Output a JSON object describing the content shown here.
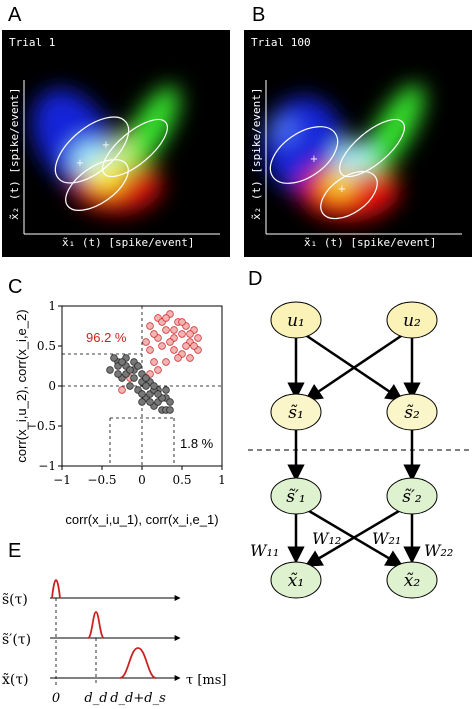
{
  "panels": {
    "A": {
      "letter": "A",
      "trial": "Trial 1",
      "xlabel": "x̃₁ (t)  [spike/event]",
      "ylabel": "x̃₂ (t)  [spike/event]"
    },
    "B": {
      "letter": "B",
      "trial": "Trial 100",
      "xlabel": "x̃₁ (t)  [spike/event]",
      "ylabel": "x̃₂ (t)  [spike/event]"
    },
    "C": {
      "letter": "C"
    },
    "D": {
      "letter": "D"
    },
    "E": {
      "letter": "E"
    }
  },
  "chart_data": [
    {
      "type": "scatter",
      "panel": "C",
      "xlabel": "corr(x_i,u_1), corr(x_i,e_1)",
      "ylabel": "corr(x_i,u_2), corr(x_i,e_2)",
      "xlim": [
        -1,
        1
      ],
      "ylim": [
        -1,
        1
      ],
      "xticks": [
        "−1",
        "−0.5",
        "0",
        "0.5",
        "1"
      ],
      "yticks": [
        "−1",
        "−0.5",
        "0",
        "0.5",
        "1"
      ],
      "annotations": [
        {
          "text": "96.2 %",
          "color": "#cc2222"
        },
        {
          "text": "1.8 %",
          "color": "#000000"
        }
      ],
      "series": [
        {
          "color": "#e06060",
          "points": [
            [
              0.1,
              0.75
            ],
            [
              0.2,
              0.85
            ],
            [
              0.3,
              0.7
            ],
            [
              0.35,
              0.9
            ],
            [
              0.4,
              0.6
            ],
            [
              0.45,
              0.8
            ],
            [
              0.5,
              0.65
            ],
            [
              0.55,
              0.75
            ],
            [
              0.6,
              0.55
            ],
            [
              0.65,
              0.7
            ],
            [
              0.7,
              0.45
            ],
            [
              0.25,
              0.5
            ],
            [
              0.15,
              0.3
            ],
            [
              0.3,
              0.3
            ],
            [
              0.5,
              0.4
            ],
            [
              0.2,
              0.6
            ],
            [
              0.4,
              0.45
            ],
            [
              0.6,
              0.35
            ],
            [
              0.1,
              0.45
            ],
            [
              0.35,
              0.55
            ],
            [
              0.55,
              0.5
            ],
            [
              0.45,
              0.35
            ],
            [
              0.7,
              0.6
            ],
            [
              0.25,
              0.8
            ],
            [
              0.05,
              0.55
            ],
            [
              -0.25,
              -0.05
            ],
            [
              -0.15,
              0.1
            ],
            [
              0.1,
              0.15
            ],
            [
              0.5,
              0.8
            ],
            [
              0.3,
              0.85
            ],
            [
              0.65,
              0.5
            ],
            [
              0.2,
              0.2
            ],
            [
              0.4,
              0.7
            ],
            [
              0.6,
              0.65
            ],
            [
              0.15,
              0.65
            ]
          ]
        },
        {
          "color": "#777777",
          "points": [
            [
              -0.3,
              0.3
            ],
            [
              -0.2,
              0.25
            ],
            [
              -0.1,
              0.2
            ],
            [
              0.0,
              0.15
            ],
            [
              0.1,
              0.05
            ],
            [
              0.2,
              -0.05
            ],
            [
              0.3,
              -0.15
            ],
            [
              -0.35,
              0.35
            ],
            [
              -0.25,
              0.1
            ],
            [
              -0.15,
              0.0
            ],
            [
              -0.05,
              -0.05
            ],
            [
              0.05,
              -0.15
            ],
            [
              0.15,
              -0.25
            ],
            [
              0.25,
              -0.3
            ],
            [
              -0.2,
              0.35
            ],
            [
              -0.1,
              0.3
            ],
            [
              0.0,
              0.05
            ],
            [
              0.1,
              -0.1
            ],
            [
              0.2,
              -0.2
            ],
            [
              0.3,
              -0.3
            ],
            [
              -0.4,
              0.2
            ],
            [
              -0.3,
              0.15
            ],
            [
              -0.1,
              0.1
            ],
            [
              0.05,
              0.0
            ],
            [
              0.15,
              -0.05
            ],
            [
              0.25,
              -0.15
            ],
            [
              0.35,
              -0.2
            ],
            [
              -0.05,
              0.25
            ],
            [
              -0.2,
              0.15
            ],
            [
              0.0,
              -0.1
            ],
            [
              0.1,
              -0.2
            ],
            [
              0.2,
              -0.1
            ],
            [
              0.3,
              -0.05
            ],
            [
              -0.3,
              0.25
            ],
            [
              -0.15,
              0.2
            ],
            [
              0.05,
              0.1
            ],
            [
              0.15,
              0.0
            ],
            [
              -0.25,
              0.3
            ],
            [
              0.35,
              -0.3
            ],
            [
              0.0,
              -0.2
            ]
          ]
        }
      ]
    },
    {
      "type": "line",
      "panel": "E",
      "xlabel": "τ [ms]",
      "series": [
        {
          "name": "s̃(τ)",
          "peak_at": "0"
        },
        {
          "name": "s̃′(τ)",
          "peak_at": "d_d"
        },
        {
          "name": "x̃(τ)",
          "peak_at": "d_d+d_s"
        }
      ],
      "xticks": [
        "0",
        "d_d",
        "d_d+d_s"
      ]
    }
  ],
  "diagram": {
    "nodes": {
      "u1": "u₁",
      "u2": "u₂",
      "s1": "s̃₁",
      "s2": "s̃₂",
      "sp1": "s̃′₁",
      "sp2": "s̃′₂",
      "x1": "x̃₁",
      "x2": "x̃₂"
    },
    "weights": {
      "w11": "W₁₁",
      "w12": "W₁₂",
      "w21": "W₂₁",
      "w22": "W₂₂"
    },
    "colors": {
      "u": "#fbf2b8",
      "s": "#fbf6c9",
      "sp": "#dff2d0",
      "x": "#dff2d0"
    }
  },
  "panelE": {
    "row_labels": [
      "s̃(τ)",
      "s̃′(τ)",
      "x̃(τ)"
    ],
    "xlabel": "τ [ms]",
    "xticks": [
      "0",
      "d_d",
      "d_d+d_s"
    ]
  }
}
